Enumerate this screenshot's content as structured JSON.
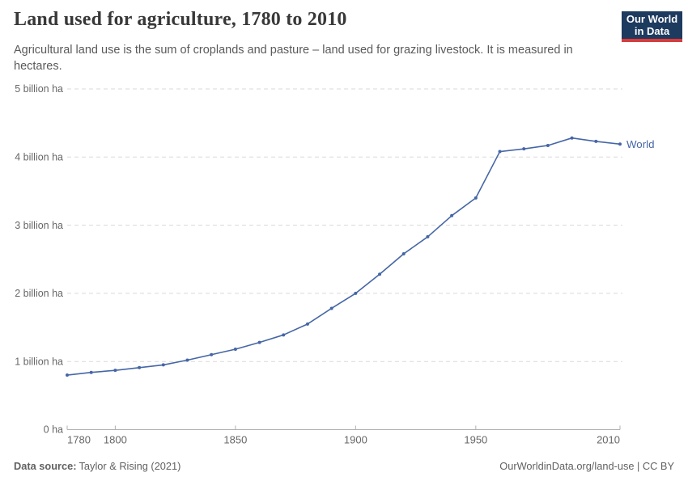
{
  "header": {
    "title": "Land used for agriculture, 1780 to 2010",
    "subtitle": "Agricultural land use is the sum of croplands and pasture – land used for grazing livestock. It is measured in hectares."
  },
  "logo": {
    "line1": "Our World",
    "line2": "in Data",
    "bg_color": "#1d3a5f",
    "bar_color": "#d73c3c"
  },
  "footer": {
    "source_label": "Data source:",
    "source_value": "Taylor & Rising (2021)",
    "right_text": "OurWorldinData.org/land-use | CC BY"
  },
  "chart_data": {
    "type": "line",
    "title": "Land used for agriculture, 1780 to 2010",
    "unit": "billion ha",
    "x": [
      1780,
      1790,
      1800,
      1810,
      1820,
      1830,
      1840,
      1850,
      1860,
      1870,
      1880,
      1890,
      1900,
      1910,
      1920,
      1930,
      1940,
      1950,
      1960,
      1970,
      1980,
      1990,
      2000,
      2010
    ],
    "series": [
      {
        "name": "World",
        "values": [
          0.8,
          0.84,
          0.87,
          0.91,
          0.95,
          1.02,
          1.1,
          1.18,
          1.28,
          1.39,
          1.55,
          1.78,
          2.0,
          2.28,
          2.58,
          2.83,
          3.14,
          3.4,
          4.08,
          4.12,
          4.17,
          4.28,
          4.23,
          4.19
        ]
      }
    ],
    "xlim": [
      1780,
      2010
    ],
    "ylim": [
      0,
      5
    ],
    "x_ticks": [
      1780,
      1800,
      1850,
      1900,
      1950,
      2010
    ],
    "y_ticks": [
      {
        "value": 0,
        "label": "0 ha"
      },
      {
        "value": 1,
        "label": "1 billion ha"
      },
      {
        "value": 2,
        "label": "2 billion ha"
      },
      {
        "value": 3,
        "label": "3 billion ha"
      },
      {
        "value": 4,
        "label": "4 billion ha"
      },
      {
        "value": 5,
        "label": "5 billion ha"
      }
    ],
    "grid": "horizontal dashed",
    "legend_position": "end-of-line",
    "line_color": "#4566a6",
    "axis_color": "#b0b0b0",
    "grid_color": "#dadada",
    "tick_label_color": "#676767"
  }
}
